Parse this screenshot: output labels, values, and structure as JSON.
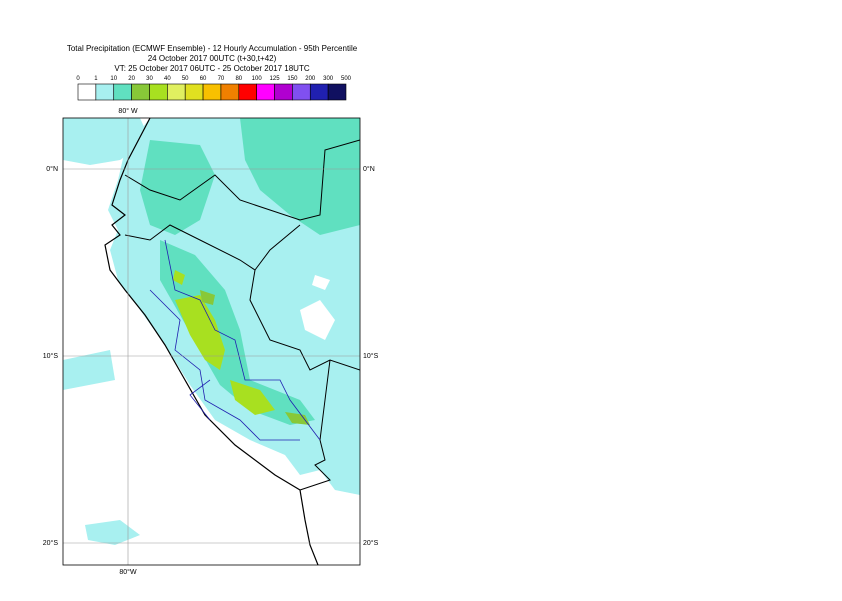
{
  "header": {
    "title": [
      "Total Precipitation (ECMWF Ensemble) - 12 Hourly Accumulation - 95th Percentile",
      "24 October 2017 00UTC (t+30,t+42)",
      "VT: 25 October 2017 06UTC - 25 October 2017 18UTC"
    ]
  },
  "legend": {
    "levels": [
      0,
      1,
      10,
      20,
      30,
      40,
      50,
      60,
      70,
      80,
      100,
      125,
      150,
      200,
      300,
      500
    ],
    "colors": [
      "#ffffff",
      "#a8f0f0",
      "#60e0c0",
      "#88c838",
      "#a8e020",
      "#e0f060",
      "#e0e020",
      "#f8c000",
      "#f08000",
      "#ff0000",
      "#ff00ff",
      "#b000d0",
      "#8050f0",
      "#2020b0",
      "#101060"
    ]
  },
  "map": {
    "lon_label_top": "80° W",
    "lon_label_bottom": "80°W",
    "lat_labels": [
      "0°N",
      "10°S",
      "20°S"
    ]
  }
}
